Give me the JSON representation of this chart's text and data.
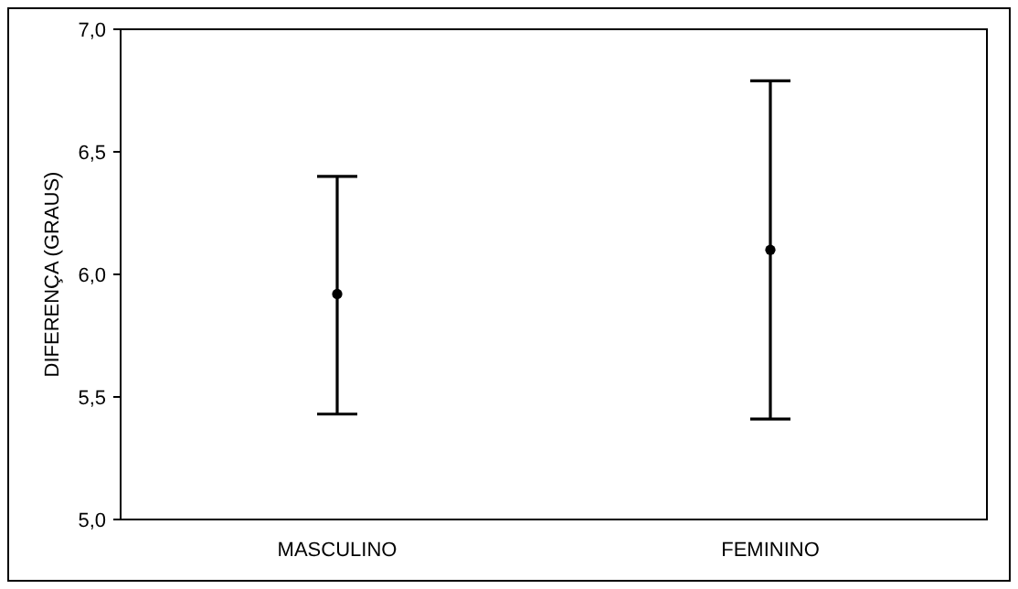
{
  "chart_data": {
    "type": "scatter",
    "ylabel": "DIFERENÇA (GRAUS)",
    "categories": [
      "MASCULINO",
      "FEMININO"
    ],
    "values": [
      5.92,
      6.1
    ],
    "errors": [
      [
        5.43,
        6.4
      ],
      [
        5.41,
        6.79
      ]
    ],
    "color": "#000000",
    "marker": "circle",
    "ylim": [
      5,
      7
    ],
    "yticks": [
      {
        "value": 5,
        "label": "5,0"
      },
      {
        "value": 5.5,
        "label": "5,5"
      },
      {
        "value": 6,
        "label": "6,0"
      },
      {
        "value": 6.5,
        "label": "6,5"
      },
      {
        "value": 7,
        "label": "7,0"
      }
    ]
  }
}
